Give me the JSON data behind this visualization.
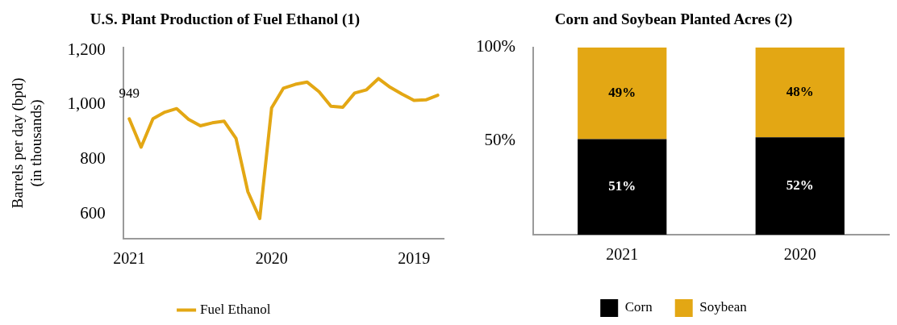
{
  "chart_data": [
    {
      "type": "line",
      "title": "U.S. Plant Production of Fuel Ethanol (1)",
      "ylabel": "Barrels per day (bpd) (in thousands)",
      "categories": [
        "2021",
        null,
        null,
        null,
        null,
        null,
        null,
        null,
        null,
        null,
        null,
        null,
        "2020",
        null,
        null,
        null,
        null,
        null,
        null,
        null,
        null,
        null,
        null,
        null,
        "2019",
        null,
        null
      ],
      "series": [
        {
          "name": "Fuel Ethanol",
          "color": "#e3a714",
          "values": [
            949,
            845,
            949,
            973,
            986,
            947,
            923,
            934,
            940,
            877,
            682,
            584,
            989,
            1061,
            1075,
            1083,
            1048,
            995,
            991,
            1043,
            1055,
            1096,
            1064,
            1039,
            1016,
            1018,
            1035
          ],
          "value_labels": [
            "949",
            null,
            null,
            null,
            null,
            null,
            null,
            null,
            null,
            null,
            null,
            null,
            null,
            null,
            null,
            null,
            null,
            null,
            null,
            null,
            null,
            null,
            null,
            null,
            null,
            null,
            null
          ]
        }
      ],
      "ylim": [
        510,
        1210
      ],
      "yticks": [
        {
          "value": 600,
          "label": "600"
        },
        {
          "value": 800,
          "label": "800"
        },
        {
          "value": 1000,
          "label": "1,000"
        },
        {
          "value": 1200,
          "label": "1,200"
        }
      ],
      "grid": false,
      "legend": "bottom",
      "marker": "none",
      "line_style": "solid"
    },
    {
      "type": "bar",
      "title": "Corn and Soybean Planted Acres (2)",
      "stacked": true,
      "categories": [
        "2021",
        "2020"
      ],
      "series": [
        {
          "name": "Corn",
          "color": "#000000",
          "values": [
            51,
            52
          ],
          "value_labels": [
            "51%",
            "52%"
          ]
        },
        {
          "name": "Soybean",
          "color": "#e3a714",
          "values": [
            49,
            48
          ],
          "value_labels": [
            "49%",
            "48%"
          ]
        }
      ],
      "ylim": [
        0,
        100
      ],
      "yticks": [
        {
          "value": 50,
          "label": "50%"
        },
        {
          "value": 100,
          "label": "100%"
        }
      ],
      "grid": false,
      "legend": "bottom"
    }
  ]
}
